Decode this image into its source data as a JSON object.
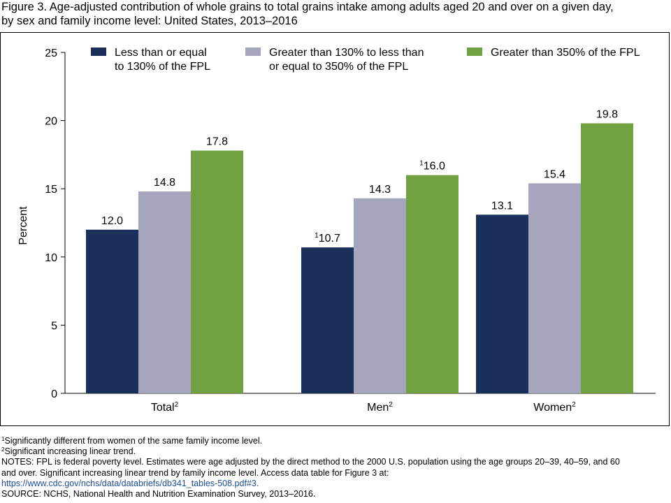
{
  "figure": {
    "title_line1": "Figure 3. Age-adjusted contribution of whole grains to total grains intake among adults aged 20 and over on a given day,",
    "title_line2": "by sex and family income level: United States, 2013–2016"
  },
  "chart_data": {
    "type": "bar",
    "categories": [
      "Total",
      "Men",
      "Women"
    ],
    "category_superscripts": [
      "2",
      "2",
      "2"
    ],
    "series": [
      {
        "name": "Less than or equal to 130% of the FPL",
        "legend_lines": [
          "Less than or equal",
          "to 130% of the FPL"
        ],
        "color": "#1b2f5b",
        "values": [
          12.0,
          10.7,
          13.1
        ],
        "labels": [
          "12.0",
          "10.7",
          "13.1"
        ],
        "label_superscripts": [
          "",
          "1",
          ""
        ]
      },
      {
        "name": "Greater than 130% to less than or equal to 350% of the FPL",
        "legend_lines": [
          "Greater than 130% to less than",
          "or equal to 350% of the FPL"
        ],
        "color": "#a5a5bd",
        "values": [
          14.8,
          14.3,
          15.4
        ],
        "labels": [
          "14.8",
          "14.3",
          "15.4"
        ],
        "label_superscripts": [
          "",
          "",
          ""
        ]
      },
      {
        "name": "Greater than 350% of the FPL",
        "legend_lines": [
          "Greater than 350% of the FPL"
        ],
        "color": "#70a03f",
        "values": [
          17.8,
          16.0,
          19.8
        ],
        "labels": [
          "17.8",
          "16.0",
          "19.8"
        ],
        "label_superscripts": [
          "",
          "1",
          ""
        ]
      }
    ],
    "ylabel": "Percent",
    "ylim": [
      0,
      25
    ],
    "yticks": [
      0,
      5,
      10,
      15,
      20,
      25
    ],
    "grid": false,
    "legend_position": "top"
  },
  "footnotes": {
    "note1_sup": "1",
    "note1": "Significantly different from women of the same family income level.",
    "note2_sup": "2",
    "note2": "Significant increasing linear trend.",
    "notes_line1": "NOTES: FPL is federal poverty level. Estimates were age adjusted by the direct method to the 2000 U.S. population using the age groups 20–39, 40–59, and 60",
    "notes_line2": "and over. Significant increasing linear trend by family income level. Access data table for Figure 3 at:",
    "link": "https://www.cdc.gov/nchs/data/databriefs/db341_tables-508.pdf#3.",
    "source": "SOURCE: NCHS, National Health and Nutrition Examination Survey, 2013–2016."
  }
}
